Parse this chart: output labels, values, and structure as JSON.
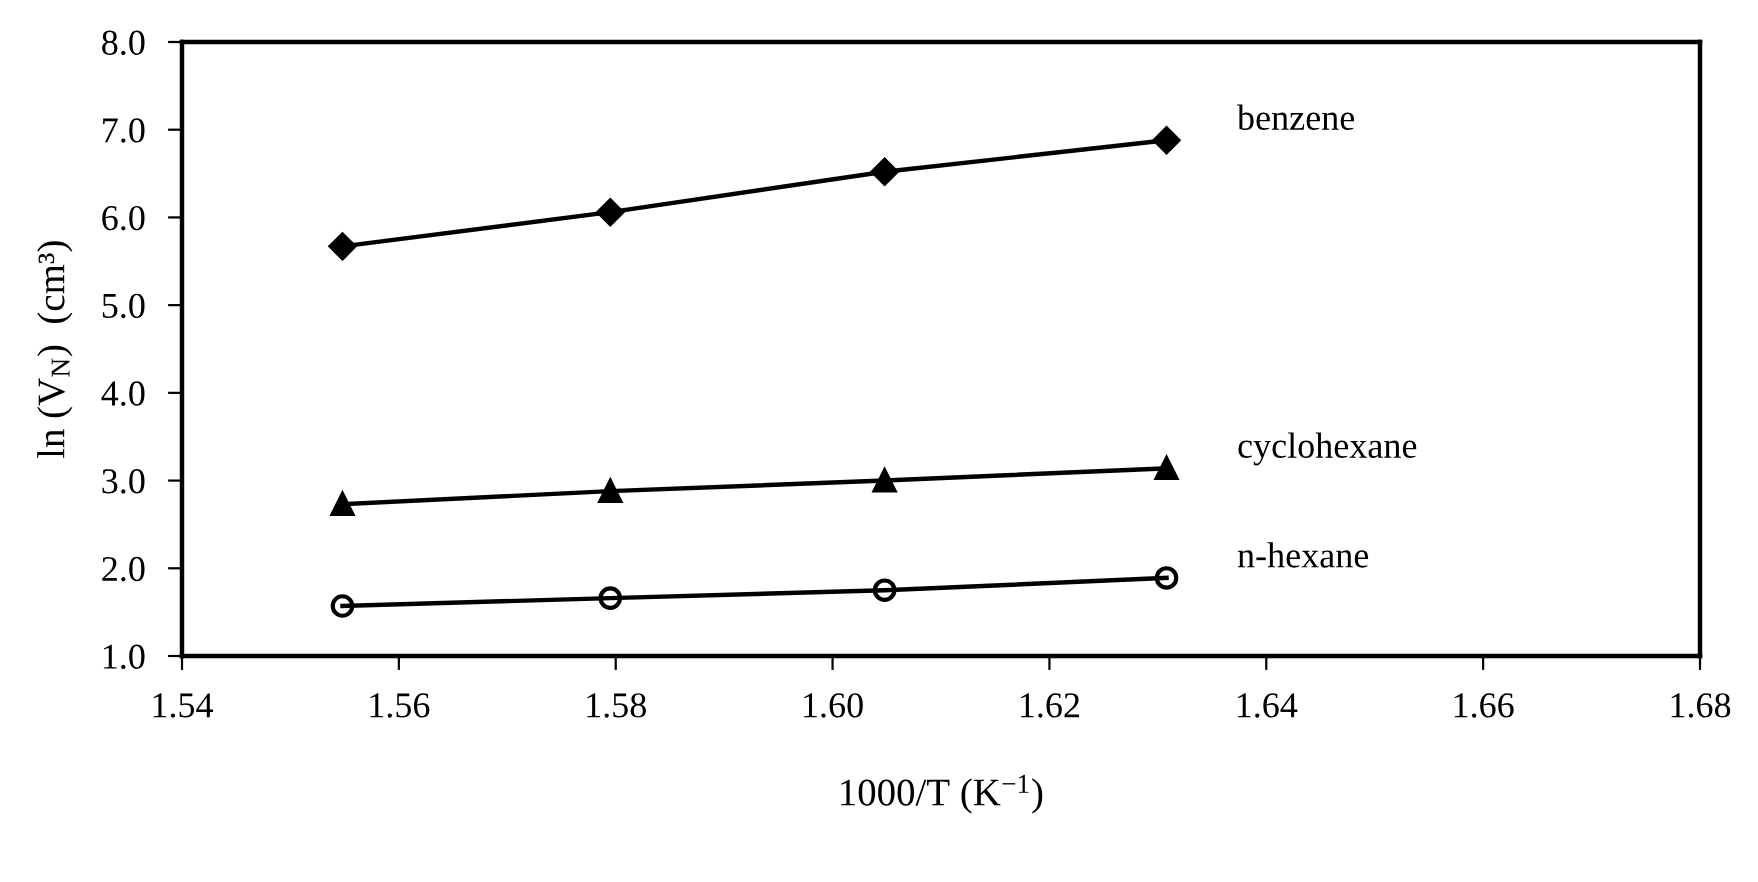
{
  "chart_data": {
    "type": "line",
    "xlabel": "1000/T (K$^{−1}$)",
    "ylabel": "ln (V$_{N}$)  (cm³)",
    "x": [
      1.5548,
      1.5795,
      1.6048,
      1.6308
    ],
    "series": [
      {
        "name": "benzene",
        "color": "#000000",
        "marker": "diamond",
        "values": [
          5.67,
          6.06,
          6.52,
          6.88
        ]
      },
      {
        "name": "cyclohexane",
        "color": "#000000",
        "marker": "triangle",
        "values": [
          2.73,
          2.88,
          3.0,
          3.14
        ]
      },
      {
        "name": "n-hexane",
        "color": "#000000",
        "marker": "circle",
        "values": [
          1.57,
          1.66,
          1.75,
          1.89
        ]
      }
    ],
    "xlim": [
      1.54,
      1.68
    ],
    "xticks": [
      {
        "value": 1.54,
        "label": "1.54"
      },
      {
        "value": 1.56,
        "label": "1.56"
      },
      {
        "value": 1.58,
        "label": "1.58"
      },
      {
        "value": 1.6,
        "label": "1.60"
      },
      {
        "value": 1.62,
        "label": "1.62"
      },
      {
        "value": 1.64,
        "label": "1.64"
      },
      {
        "value": 1.66,
        "label": "1.66"
      },
      {
        "value": 1.68,
        "label": "1.68"
      }
    ],
    "ylim": [
      1.0,
      8.0
    ],
    "yticks": [
      {
        "value": 1,
        "label": "1.0"
      },
      {
        "value": 2,
        "label": "2.0"
      },
      {
        "value": 3,
        "label": "3.0"
      },
      {
        "value": 4,
        "label": "4.0"
      },
      {
        "value": 5,
        "label": "5.0"
      },
      {
        "value": 6,
        "label": "6.0"
      },
      {
        "value": 7,
        "label": "7.0"
      },
      {
        "value": 8,
        "label": "8.0"
      }
    ],
    "grid": false,
    "legend": false,
    "line_style": "solid"
  }
}
